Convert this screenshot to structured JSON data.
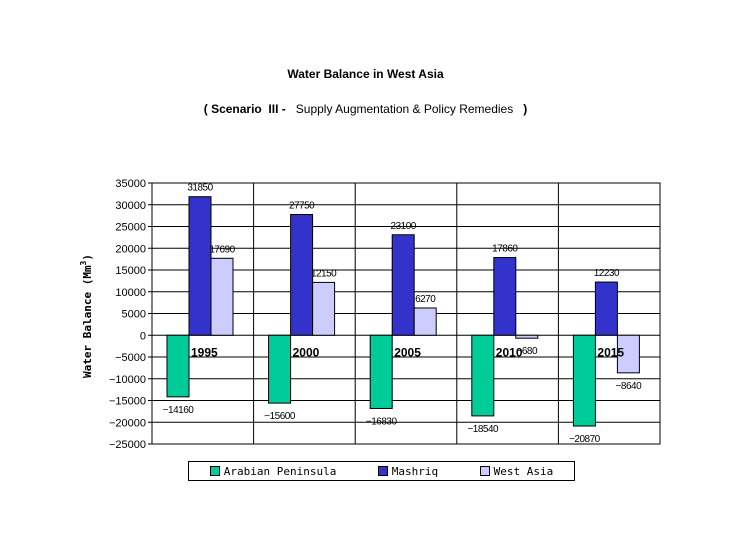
{
  "title": "Water Balance in West Asia",
  "subtitle": {
    "prefix": "( Scenario  III -",
    "main": "Supply Augmentation & Policy Remedies",
    "suffix": ")"
  },
  "colors": {
    "arabian_peninsula": "#00cc99",
    "mashriq": "#3333cc",
    "west_asia": "#ccccff"
  },
  "chart_data": {
    "type": "bar",
    "title": "Water Balance in West Asia",
    "subtitle": "( Scenario III - Supply Augmentation & Policy Remedies )",
    "ylabel": "Water Balance (Mm3)",
    "ylabel_parts": {
      "main": "Water Balance (Mm",
      "sup": "3",
      "end": ")"
    },
    "categories": [
      "1995",
      "2000",
      "2005",
      "2010",
      "2015"
    ],
    "ylim": [
      -25000,
      35000
    ],
    "y_ticks": [
      35000,
      30000,
      25000,
      20000,
      15000,
      10000,
      5000,
      0,
      -5000,
      -10000,
      -15000,
      -20000,
      -25000
    ],
    "y_tick_labels": [
      "35000",
      "30000",
      "25000",
      "20000",
      "15000",
      "10000",
      "5000",
      "0",
      "−5000",
      "−10000",
      "−15000",
      "−20000",
      "−25000"
    ],
    "grid": true,
    "legend_position": "bottom",
    "series": [
      {
        "name": "Arabian Peninsula",
        "values": [
          -14160,
          -15600,
          -16830,
          -18540,
          -20870
        ],
        "labels": [
          "−14160",
          "−15600",
          "−16830",
          "−18540",
          "−20870"
        ]
      },
      {
        "name": "Mashriq",
        "values": [
          31850,
          27750,
          23100,
          17860,
          12230
        ],
        "labels": [
          "31850",
          "27750",
          "23100",
          "17860",
          "12230"
        ]
      },
      {
        "name": "West Asia",
        "values": [
          17690,
          12150,
          6270,
          -680,
          -8640
        ],
        "labels": [
          "17690",
          "12150",
          "6270",
          "−680",
          "−8640"
        ]
      }
    ]
  }
}
